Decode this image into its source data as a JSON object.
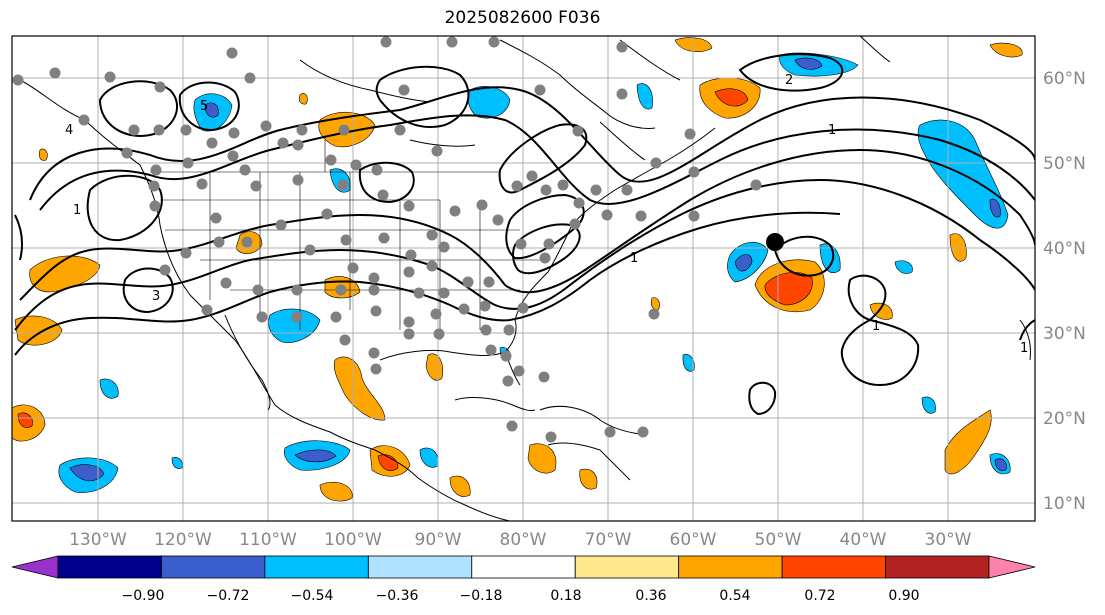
{
  "title": "2025082600 F036",
  "lon_labels": [
    "130°W",
    "120°W",
    "110°W",
    "100°W",
    "90°W",
    "80°W",
    "70°W",
    "60°W",
    "50°W",
    "40°W",
    "30°W"
  ],
  "lat_labels": [
    "60°N",
    "50°N",
    "40°N",
    "30°N",
    "20°N",
    "10°N"
  ],
  "colorbar": {
    "ticks": [
      "−0.90",
      "−0.72",
      "−0.54",
      "−0.36",
      "−0.18",
      "0.18",
      "0.36",
      "0.54",
      "0.72",
      "0.90"
    ],
    "colors": [
      "#9932cc",
      "#00008b",
      "#3a5fcd",
      "#00bfff",
      "#b0e2ff",
      "#ffffff",
      "#ffe98c",
      "#ffa500",
      "#ff4500",
      "#b22222",
      "#ff82ab"
    ]
  },
  "contour_labels": [
    "1",
    "2",
    "3",
    "4",
    "5"
  ],
  "colors": {
    "frame": "#000000",
    "grid": "#b0b0b0",
    "obs_dot": "#808080",
    "center_dot": "#000000"
  }
}
